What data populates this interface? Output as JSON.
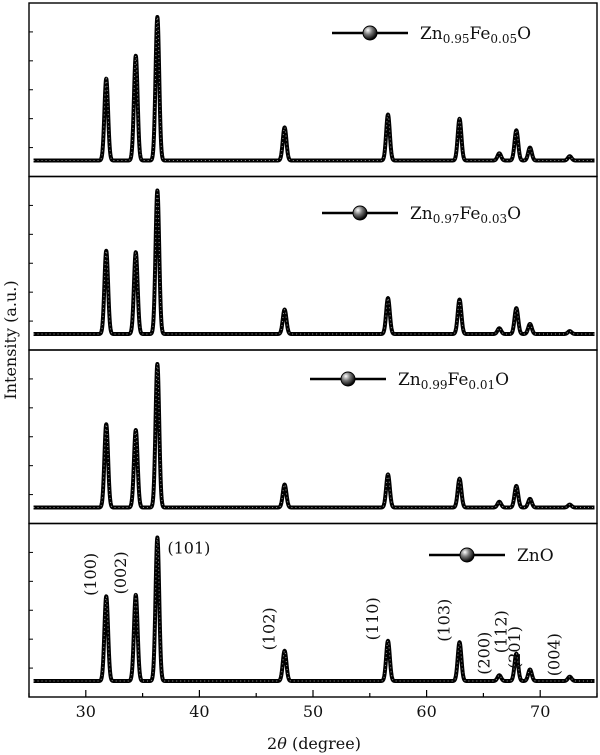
{
  "chart_data": {
    "type": "line",
    "xlabel_prefix": "2",
    "xlabel_symbol": "θ",
    "xlabel_suffix": " (degree)",
    "ylabel": "Intensity (a.u.)",
    "xlim": [
      25,
      75
    ],
    "x_ticks": [
      30,
      40,
      50,
      60,
      70
    ],
    "legend_position": "top-right",
    "marker": "sphere",
    "series": [
      {
        "name": "Zn0.95Fe0.05O",
        "legend": {
          "base1": "Zn",
          "sub1": "0.95",
          "base2": "Fe",
          "sub2": "0.05",
          "base3": "O"
        },
        "peaks": [
          {
            "x": 31.8,
            "height": 0.57
          },
          {
            "x": 34.4,
            "height": 0.73
          },
          {
            "x": 36.3,
            "height": 1.0
          },
          {
            "x": 47.5,
            "height": 0.23
          },
          {
            "x": 56.6,
            "height": 0.32
          },
          {
            "x": 62.9,
            "height": 0.29
          },
          {
            "x": 66.4,
            "height": 0.05
          },
          {
            "x": 67.9,
            "height": 0.21
          },
          {
            "x": 69.1,
            "height": 0.09
          },
          {
            "x": 72.6,
            "height": 0.03
          }
        ]
      },
      {
        "name": "Zn0.97Fe0.03O",
        "legend": {
          "base1": "Zn",
          "sub1": "0.97",
          "base2": "Fe",
          "sub2": "0.03",
          "base3": "O"
        },
        "peaks": [
          {
            "x": 31.8,
            "height": 0.58
          },
          {
            "x": 34.4,
            "height": 0.57
          },
          {
            "x": 36.3,
            "height": 1.0
          },
          {
            "x": 47.5,
            "height": 0.17
          },
          {
            "x": 56.6,
            "height": 0.25
          },
          {
            "x": 62.9,
            "height": 0.24
          },
          {
            "x": 66.4,
            "height": 0.04
          },
          {
            "x": 67.9,
            "height": 0.18
          },
          {
            "x": 69.1,
            "height": 0.07
          },
          {
            "x": 72.6,
            "height": 0.02
          }
        ]
      },
      {
        "name": "Zn0.99Fe0.01O",
        "legend": {
          "base1": "Zn",
          "sub1": "0.99",
          "base2": "Fe",
          "sub2": "0.01",
          "base3": "O"
        },
        "peaks": [
          {
            "x": 31.8,
            "height": 0.58
          },
          {
            "x": 34.4,
            "height": 0.54
          },
          {
            "x": 36.3,
            "height": 1.0
          },
          {
            "x": 47.5,
            "height": 0.16
          },
          {
            "x": 56.6,
            "height": 0.23
          },
          {
            "x": 62.9,
            "height": 0.2
          },
          {
            "x": 66.4,
            "height": 0.04
          },
          {
            "x": 67.9,
            "height": 0.15
          },
          {
            "x": 69.1,
            "height": 0.06
          },
          {
            "x": 72.6,
            "height": 0.02
          }
        ]
      },
      {
        "name": "ZnO",
        "legend": {
          "base1": "ZnO",
          "sub1": "",
          "base2": "",
          "sub2": "",
          "base3": ""
        },
        "peaks": [
          {
            "x": 31.8,
            "height": 0.59
          },
          {
            "x": 34.4,
            "height": 0.6
          },
          {
            "x": 36.3,
            "height": 1.0
          },
          {
            "x": 47.5,
            "height": 0.21
          },
          {
            "x": 56.6,
            "height": 0.28
          },
          {
            "x": 62.9,
            "height": 0.27
          },
          {
            "x": 66.4,
            "height": 0.04
          },
          {
            "x": 67.9,
            "height": 0.19
          },
          {
            "x": 69.1,
            "height": 0.08
          },
          {
            "x": 72.6,
            "height": 0.03
          }
        ]
      }
    ],
    "annotations": [
      {
        "text": "(100)",
        "x": 31.8
      },
      {
        "text": "(002)",
        "x": 34.4
      },
      {
        "text": "(101)",
        "x": 36.3
      },
      {
        "text": "(102)",
        "x": 47.5
      },
      {
        "text": "(110)",
        "x": 56.6
      },
      {
        "text": "(103)",
        "x": 62.9
      },
      {
        "text": "(200)",
        "x": 66.4
      },
      {
        "text": "(112)",
        "x": 67.9
      },
      {
        "text": "(201)",
        "x": 69.1
      },
      {
        "text": "(004)",
        "x": 72.6
      }
    ]
  }
}
